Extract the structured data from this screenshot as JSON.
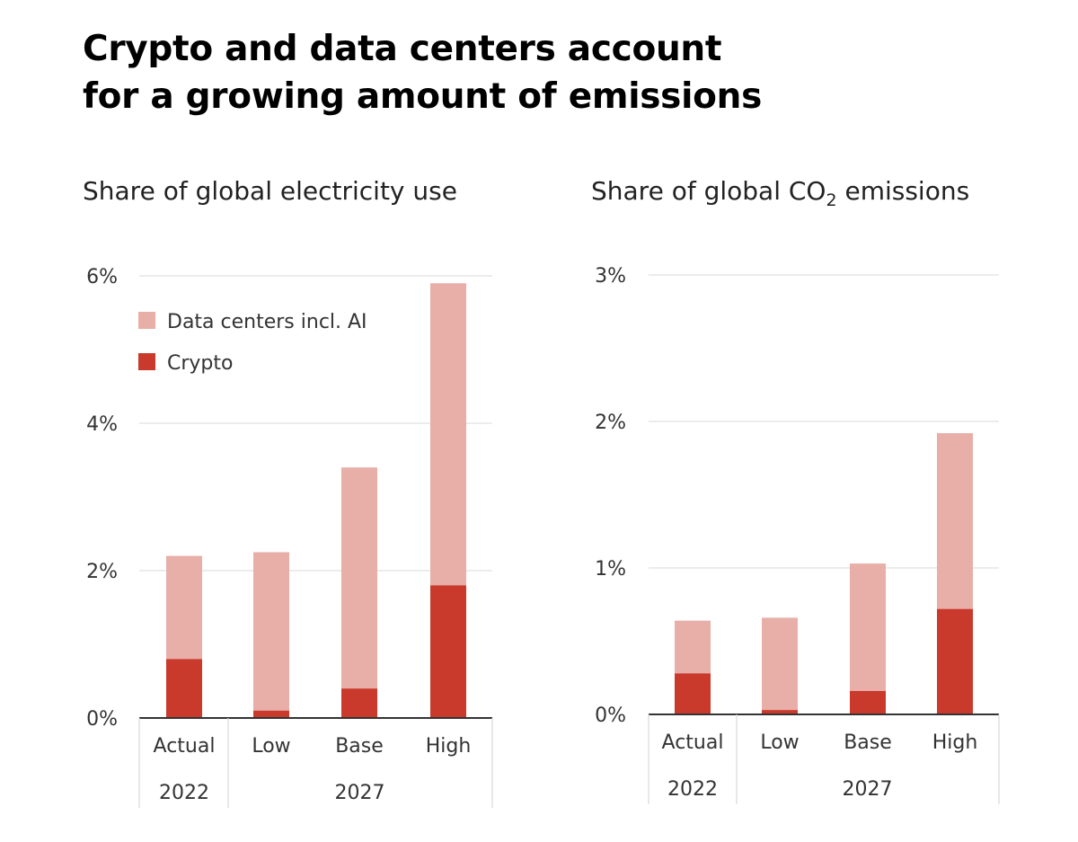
{
  "title": {
    "line1": "Crypto and data centers account",
    "line2": "for a growing amount of emissions"
  },
  "colors": {
    "data_centers": "#e8aea8",
    "crypto": "#c93a2c",
    "grid": "#d9d9d9",
    "axis": "#333333"
  },
  "chart_data": [
    {
      "type": "bar",
      "stacked": true,
      "title": "Share of global electricity use",
      "categories": [
        "Actual",
        "Low",
        "Base",
        "High"
      ],
      "groups": [
        {
          "label": "2022",
          "categories": [
            "Actual"
          ]
        },
        {
          "label": "2027",
          "categories": [
            "Low",
            "Base",
            "High"
          ]
        }
      ],
      "series": [
        {
          "name": "Crypto",
          "values": [
            0.8,
            0.1,
            0.4,
            1.8
          ]
        },
        {
          "name": "Data centers incl. AI",
          "values": [
            1.4,
            2.15,
            3.0,
            4.1
          ]
        }
      ],
      "ylim": [
        0,
        6
      ],
      "yticks": [
        0,
        2,
        4,
        6
      ],
      "ytick_labels": [
        "0%",
        "2%",
        "4%",
        "6%"
      ],
      "grid": true,
      "legend": {
        "position": "top-left",
        "entries": [
          "Data centers incl. AI",
          "Crypto"
        ]
      }
    },
    {
      "type": "bar",
      "stacked": true,
      "title_prefix": "Share of global CO",
      "title_subscript": "2",
      "title_suffix": " emissions",
      "categories": [
        "Actual",
        "Low",
        "Base",
        "High"
      ],
      "groups": [
        {
          "label": "2022",
          "categories": [
            "Actual"
          ]
        },
        {
          "label": "2027",
          "categories": [
            "Low",
            "Base",
            "High"
          ]
        }
      ],
      "series": [
        {
          "name": "Crypto",
          "values": [
            0.28,
            0.03,
            0.16,
            0.72
          ]
        },
        {
          "name": "Data centers incl. AI",
          "values": [
            0.36,
            0.63,
            0.87,
            1.2
          ]
        }
      ],
      "ylim": [
        0,
        3
      ],
      "yticks": [
        0,
        1,
        2,
        3
      ],
      "ytick_labels": [
        "0%",
        "1%",
        "2%",
        "3%"
      ],
      "grid": true
    }
  ]
}
